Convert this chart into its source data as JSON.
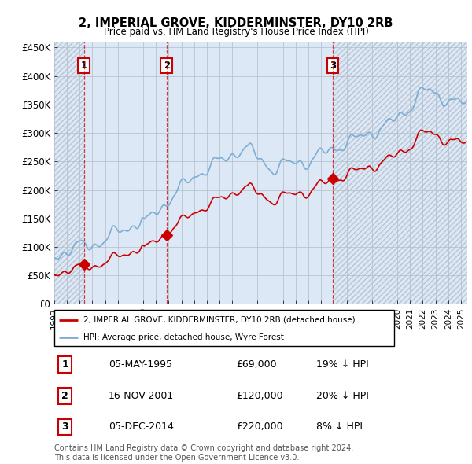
{
  "title1": "2, IMPERIAL GROVE, KIDDERMINSTER, DY10 2RB",
  "title2": "Price paid vs. HM Land Registry's House Price Index (HPI)",
  "ylim": [
    0,
    460000
  ],
  "yticks": [
    0,
    50000,
    100000,
    150000,
    200000,
    250000,
    300000,
    350000,
    400000,
    450000
  ],
  "ytick_labels": [
    "£0",
    "£50K",
    "£100K",
    "£150K",
    "£200K",
    "£250K",
    "£300K",
    "£350K",
    "£400K",
    "£450K"
  ],
  "sale_prices": [
    69000,
    120000,
    220000
  ],
  "sale_labels": [
    "1",
    "2",
    "3"
  ],
  "sale_years": [
    1995,
    2001,
    2014
  ],
  "sale_months": [
    5,
    11,
    12
  ],
  "hpi_color": "#7eadd4",
  "sale_color": "#cc0000",
  "hatch_color": "#b8c4d4",
  "bg_color": "#dce8f5",
  "grid_color": "#b0bec8",
  "legend_sale": "2, IMPERIAL GROVE, KIDDERMINSTER, DY10 2RB (detached house)",
  "legend_hpi": "HPI: Average price, detached house, Wyre Forest",
  "table_rows": [
    {
      "label": "1",
      "date": "05-MAY-1995",
      "price": "£69,000",
      "hpi": "19% ↓ HPI"
    },
    {
      "label": "2",
      "date": "16-NOV-2001",
      "price": "£120,000",
      "hpi": "20% ↓ HPI"
    },
    {
      "label": "3",
      "date": "05-DEC-2014",
      "price": "£220,000",
      "hpi": "8% ↓ HPI"
    }
  ],
  "footer": "Contains HM Land Registry data © Crown copyright and database right 2024.\nThis data is licensed under the Open Government Licence v3.0.",
  "xmin": 1993.0,
  "xmax": 2025.5
}
